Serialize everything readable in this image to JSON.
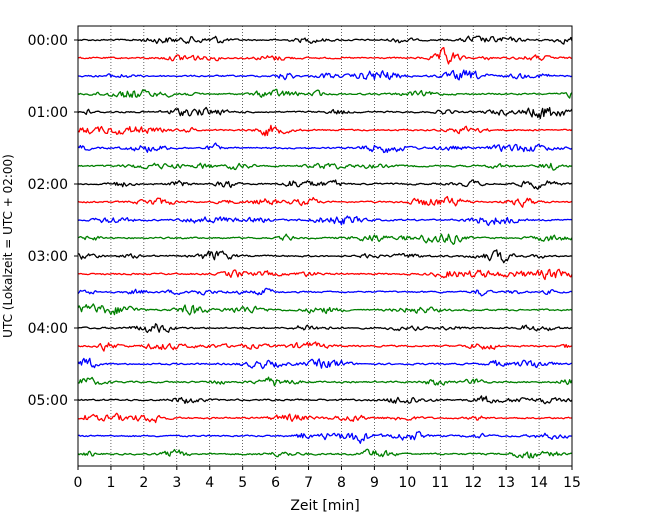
{
  "chart_data": {
    "type": "line",
    "title": "",
    "xlabel": "Zeit  [min]",
    "ylabel": "UTC (Lokalzeit = UTC + 02:00)",
    "xlim": [
      0,
      15
    ],
    "x_ticks": [
      "0",
      "1",
      "2",
      "3",
      "4",
      "5",
      "6",
      "7",
      "8",
      "9",
      "10",
      "11",
      "12",
      "13",
      "14",
      "15"
    ],
    "y_tick_labels": [
      "00:00",
      "01:00",
      "02:00",
      "03:00",
      "04:00",
      "05:00"
    ],
    "trace_interval_min": 15,
    "trace_count": 24,
    "trace_colors": [
      "#000000",
      "#ff0000",
      "#0000ff",
      "#008000"
    ],
    "grid": {
      "x": true,
      "y": false,
      "style": "dotted"
    }
  }
}
